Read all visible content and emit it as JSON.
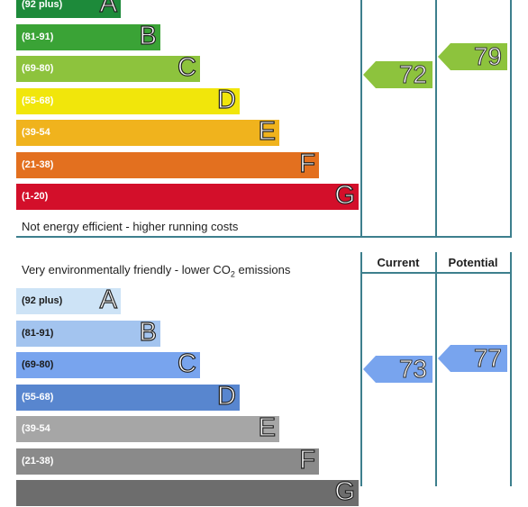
{
  "chart_data": [
    {
      "type": "bar",
      "categories": [
        "A",
        "B",
        "C",
        "D",
        "E",
        "F",
        "G"
      ],
      "ranges": [
        "(92 plus)",
        "(81-91)",
        "(69-80)",
        "(55-68)",
        "(39-54",
        "(21-38)",
        "(1-20)"
      ],
      "colors": [
        "#1d8a3a",
        "#3aa336",
        "#8dc33d",
        "#f1e60b",
        "#f0b31d",
        "#e3701f",
        "#d30f2a"
      ],
      "footer": "Not energy efficient - higher running costs",
      "current": 72,
      "potential": 79,
      "current_color": "#8dc33d",
      "potential_color": "#8dc33d"
    },
    {
      "type": "bar",
      "caption_prefix": "Very environmentally friendly - lower CO",
      "caption_sub": "2",
      "caption_suffix": " emissions",
      "col_current": "Current",
      "col_potential": "Potential",
      "categories": [
        "A",
        "B",
        "C",
        "D",
        "E",
        "F",
        "G"
      ],
      "ranges": [
        "(92 plus)",
        "(81-91)",
        "(69-80)",
        "(55-68)",
        "(39-54",
        "(21-38)",
        ""
      ],
      "colors": [
        "#cde3f6",
        "#a3c4ef",
        "#78a4ee",
        "#5886cf",
        "#a6a6a6",
        "#8a8a8a",
        "#6d6d6d"
      ],
      "current": 73,
      "potential": 77,
      "current_color": "#78a4ee",
      "potential_color": "#78a4ee"
    }
  ]
}
